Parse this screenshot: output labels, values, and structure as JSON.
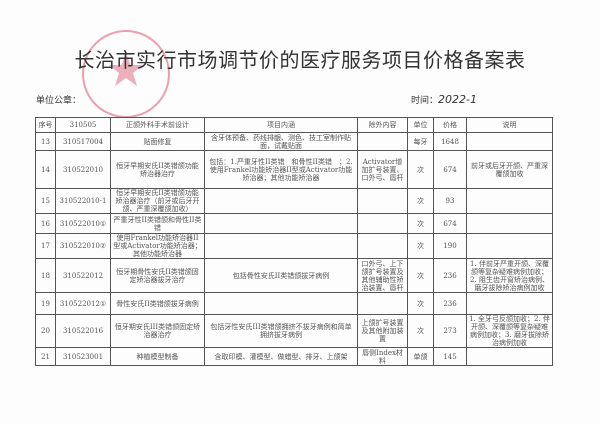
{
  "title": "长治市实行市场调节价的医疗服务项目价格备案表",
  "unit_seal_label": "单位公章：",
  "time_label": "时间：",
  "time_value": "2022-1",
  "seal_text": "长治市人民医院",
  "header": [
    "序号",
    "310505",
    "正颌外科手术前设计",
    "项目内涵",
    "除外内容",
    "单位",
    "价格",
    "说明"
  ],
  "rows": [
    {
      "no": "13",
      "code": "310517004",
      "name": "贴面修复",
      "content": "含牙体预备、药线排龈、测色、技工室制作贴面，试戴贴面",
      "excl": "",
      "unit": "每牙",
      "price": "1648",
      "note": ""
    },
    {
      "no": "14",
      "code": "310522010",
      "name": "恒牙早期安氏II类错颌功能矫治器治疗",
      "content": "包括：1.严重牙性II类错　和骨性II类错　；2.使用Frankel功能矫治器II型或Activator功能矫治器；其他功能矫治器",
      "excl": "Activator增加扩号装置、口外弓、唇杆",
      "unit": "次",
      "price": "674",
      "note": "前牙或后牙开颌、严重深覆颌加收"
    },
    {
      "no": "15",
      "code": "310522010-1",
      "name": "恒牙早期安氏II类错颌功能矫治器治疗（前牙或后牙开颌、严重深覆颌加收）",
      "content": "",
      "excl": "",
      "unit": "次",
      "price": "93",
      "note": ""
    },
    {
      "no": "16",
      "code": "310522010①",
      "name": "严重牙性II类错颌和骨性II类错",
      "content": "",
      "excl": "",
      "unit": "次",
      "price": "674",
      "note": ""
    },
    {
      "no": "17",
      "code": "310522010②",
      "name": "使用Frankel功能矫治器II型或Activator功能矫治器；其他功能矫治器",
      "content": "",
      "excl": "",
      "unit": "次",
      "price": "190",
      "note": ""
    },
    {
      "no": "18",
      "code": "310522012",
      "name": "恒牙期骨性安氏II类错颌固定矫治器拔牙治疗",
      "content": "包括骨性安氏II类错颌拔牙病例",
      "excl": "口外弓、上下颌扩号装置及其他辅助性矫治装置、唇杆",
      "unit": "次",
      "price": "236",
      "note": "1. 伴前牙严重开颌、深覆颌等复杂疑难病例加收；2. 阻生齿开窗矫治病例、磨牙拔除矫治病例加收"
    },
    {
      "no": "19",
      "code": "310522012①",
      "name": "骨性安氏II类错颌拔牙病例",
      "content": "",
      "excl": "",
      "unit": "次",
      "price": "236",
      "note": ""
    },
    {
      "no": "20",
      "code": "310522016",
      "name": "恒牙期安氏III类错颌固定矫治器治疗",
      "content": "包括牙性安氏III类错颌拥挤不拔牙病例和简单拥挤拔牙病例",
      "excl": "上颌扩号装置及其他附加装置",
      "unit": "次",
      "price": "273",
      "note": "1. 全牙弓反颌加收；2. 伴开颌、深覆颌等复杂疑难病例加收；3. 磨牙拔除矫治病例加收"
    },
    {
      "no": "21",
      "code": "310523001",
      "name": "种植模型制备",
      "content": "含取印模、灌模型、做蜡型、排牙、上颌架",
      "excl": "唇侧Index材料",
      "unit": "单颌",
      "price": "145",
      "note": ""
    }
  ]
}
